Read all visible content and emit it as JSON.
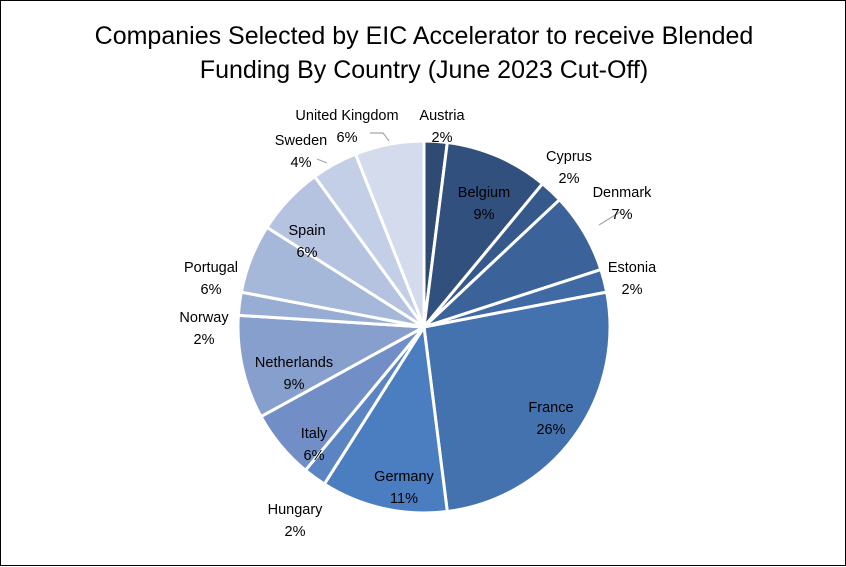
{
  "chart_data": {
    "type": "pie",
    "title_lines": [
      "Companies Selected by EIC Accelerator to receive Blended",
      "Funding By Country (June 2023 Cut-Off)"
    ],
    "slices": [
      {
        "label": "Austria",
        "value": 2,
        "value_label": "2%",
        "color": "#2f4b73"
      },
      {
        "label": "Belgium",
        "value": 9,
        "value_label": "9%",
        "color": "#32507e"
      },
      {
        "label": "Cyprus",
        "value": 2,
        "value_label": "2%",
        "color": "#36598c"
      },
      {
        "label": "Denmark",
        "value": 7,
        "value_label": "7%",
        "color": "#3b6399"
      },
      {
        "label": "Estonia",
        "value": 2,
        "value_label": "2%",
        "color": "#3f6aa3"
      },
      {
        "label": "France",
        "value": 26,
        "value_label": "26%",
        "color": "#4472ae"
      },
      {
        "label": "Germany",
        "value": 11,
        "value_label": "11%",
        "color": "#4a7ec0"
      },
      {
        "label": "Hungary",
        "value": 2,
        "value_label": "2%",
        "color": "#5b84c2"
      },
      {
        "label": "Italy",
        "value": 6,
        "value_label": "6%",
        "color": "#718fc6"
      },
      {
        "label": "Netherlands",
        "value": 9,
        "value_label": "9%",
        "color": "#869fcc"
      },
      {
        "label": "Norway",
        "value": 2,
        "value_label": "2%",
        "color": "#98add3"
      },
      {
        "label": "Portugal",
        "value": 6,
        "value_label": "6%",
        "color": "#a6b8da"
      },
      {
        "label": "Spain",
        "value": 6,
        "value_label": "6%",
        "color": "#b5c3e0"
      },
      {
        "label": "Sweden",
        "value": 4,
        "value_label": "4%",
        "color": "#c3cfe7"
      },
      {
        "label": "United Kingdom",
        "value": 6,
        "value_label": "6%",
        "color": "#d3dbec"
      }
    ],
    "start_angle_deg": 0,
    "direction": "clockwise",
    "slice_border_color": "#ffffff",
    "inside_label_color": "#000000",
    "outside_label_color": "#000000",
    "leader_line_color": "#a6a6a6"
  }
}
